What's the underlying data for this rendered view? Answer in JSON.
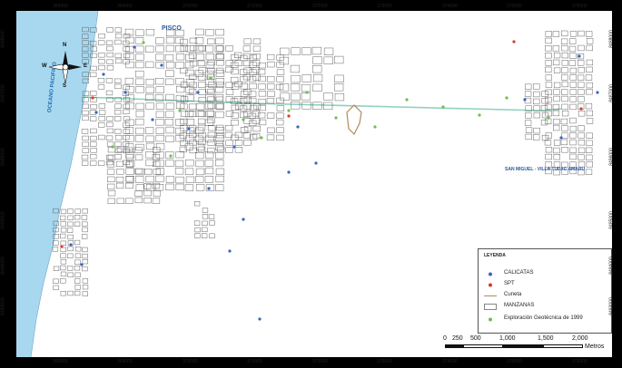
{
  "map": {
    "places": {
      "pisco": "PISCO",
      "san_miguel": "SAN MIGUEL - VILLA TUPAC AMARU",
      "ocean": "OCEANO PACIFICO"
    },
    "top_ticks": [
      "368000",
      "369000",
      "370000",
      "371000",
      "372000",
      "373000",
      "374000",
      "375000",
      "376000"
    ],
    "bottom_ticks": [
      "368000",
      "369000",
      "370000",
      "371000",
      "372000",
      "373000",
      "374000",
      "375000",
      "376000"
    ],
    "left_ticks": [
      "8488000",
      "8487000",
      "8486000",
      "8485000",
      "8484000",
      "8483000"
    ],
    "right_ticks": [
      "8488000",
      "8487000",
      "8486000",
      "8485000",
      "8484000",
      "8483000"
    ]
  },
  "north_arrow": {
    "n": "N",
    "s": "S",
    "e": "E",
    "w": "W"
  },
  "legend": {
    "title": "LEYENDA",
    "items": [
      {
        "label": "CALICATAS",
        "icon": "blue-dot-icon",
        "color": "#3b63c4"
      },
      {
        "label": "SPT",
        "icon": "red-dot-icon",
        "color": "#d83a2a"
      },
      {
        "label": "Cuneta",
        "icon": "line-icon",
        "color": "#b58a5a"
      },
      {
        "label": "MANZANAS",
        "icon": "block-icon",
        "color": "#555555"
      },
      {
        "label": "Exploración Geotécnica de 1999",
        "icon": "green-dot-icon",
        "color": "#6cc04a"
      }
    ]
  },
  "scale_bar": {
    "labels": [
      "0",
      "250",
      "500",
      "1,000",
      "1,500",
      "2,000"
    ],
    "unit": "Metros"
  },
  "colors": {
    "ocean": "#a8d8ef",
    "road": "#8fd0c0",
    "blocks": "#555555",
    "calicata": "#3b63c4",
    "spt": "#d83a2a",
    "geo1999": "#6cc04a"
  }
}
